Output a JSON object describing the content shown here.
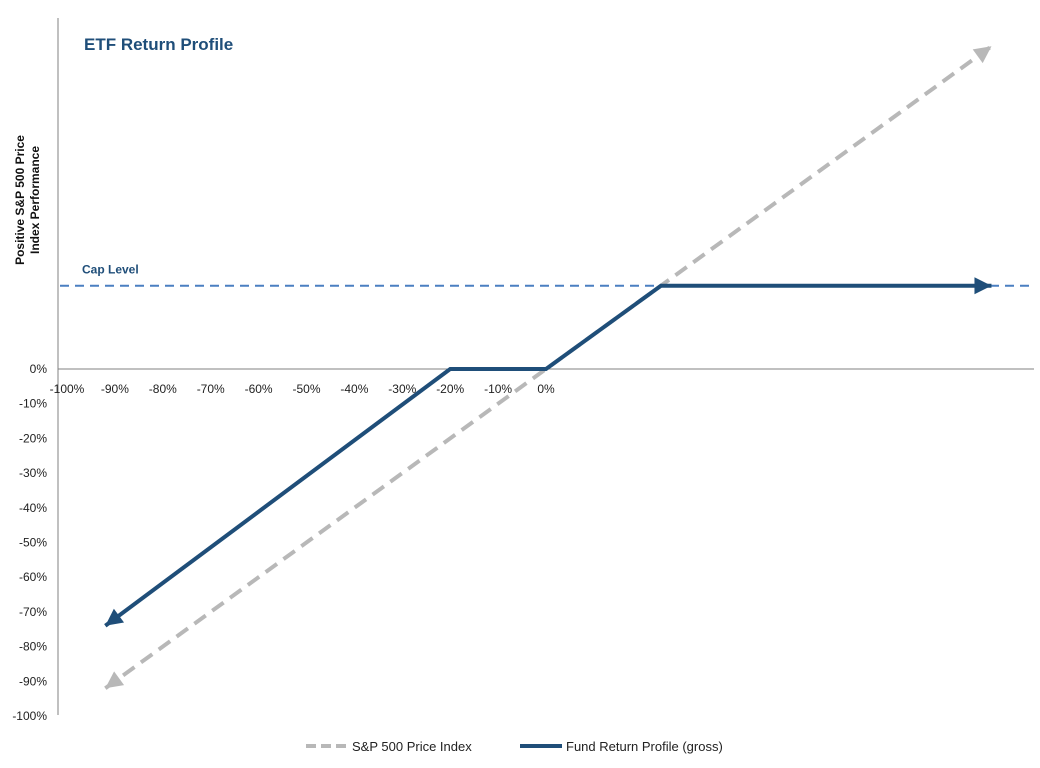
{
  "chart_data": {
    "type": "line",
    "title": "ETF Return Profile",
    "ylabel_lines": [
      "Positive S&P 500 Price",
      "Index Performance"
    ],
    "cap_label": "Cap Level",
    "x_ticks": [
      "-100%",
      "-90%",
      "-80%",
      "-70%",
      "-60%",
      "-50%",
      "-40%",
      "-30%",
      "-20%",
      "-10%",
      "0%"
    ],
    "y_ticks": [
      "0%",
      "-10%",
      "-20%",
      "-30%",
      "-40%",
      "-50%",
      "-60%",
      "-70%",
      "-80%",
      "-90%",
      "-100%"
    ],
    "xlim": [
      -100,
      100
    ],
    "ylim": [
      -100,
      100
    ],
    "cap_level": 24,
    "series": [
      {
        "name": "S&P 500 Price Index",
        "style": "dashed",
        "color": "#b8b8b8",
        "points": [
          [
            -92,
            -92
          ],
          [
            93,
            93
          ]
        ]
      },
      {
        "name": "Fund Return Profile (gross)",
        "style": "solid",
        "color": "#1f4e79",
        "points": [
          [
            -92,
            -74
          ],
          [
            -20,
            0
          ],
          [
            0,
            0
          ],
          [
            24,
            24
          ],
          [
            93,
            24
          ]
        ]
      }
    ],
    "colors": {
      "title": "#1f4e79",
      "cap_line": "#4a7fc1",
      "cap_label": "#1f4e79",
      "axis": "#808080"
    }
  }
}
